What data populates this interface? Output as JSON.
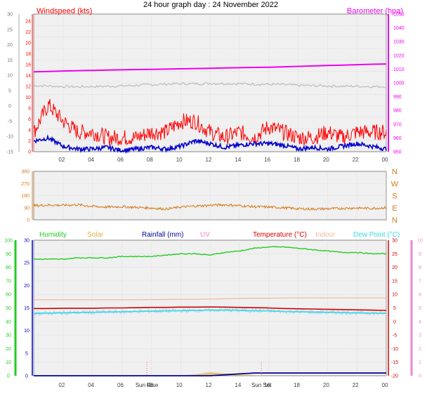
{
  "title": "24 hour graph day : 24 November 2022",
  "colors": {
    "wind": "#ff0000",
    "gust_bg": "#ff0000",
    "avg": "#0000cc",
    "baro": "#ee00ee",
    "temp_line": "#d40000",
    "humidity": "#22cc22",
    "solar": "#e0b040",
    "rain": "#000099",
    "uv": "#ee88cc",
    "indoor": "#f0b8a0",
    "dew": "#33dddd",
    "direction": "#d67a1a",
    "grey_trace": "#bbbbbb",
    "grid": "#c8c8c8",
    "panel_bg": "#f0f0f0"
  },
  "x_ticks": [
    "02",
    "04",
    "06",
    "08",
    "10",
    "12",
    "14",
    "16",
    "18",
    "20",
    "22",
    "00"
  ],
  "sun_labels": {
    "sunrise": "Sun Rise",
    "sunset": "Sun Set"
  },
  "chart_data": [
    {
      "type": "line",
      "title": "",
      "left_axis_label": "Windspeed (kts)",
      "right_axis_label": "Barometer (hpa)",
      "left_ticks": [
        24,
        22,
        20,
        18,
        16,
        14,
        12,
        10,
        8,
        6,
        4,
        2,
        0
      ],
      "outer_left_ticks": [
        30,
        25,
        20,
        15,
        10,
        5,
        0,
        -5,
        -10,
        -15
      ],
      "right_ticks": [
        1050,
        1040,
        1030,
        1020,
        1010,
        1000,
        990,
        980,
        970,
        960,
        950
      ],
      "ylim_left": [
        0,
        24
      ],
      "ylim_right": [
        950,
        1050
      ],
      "x_hours": [
        0,
        1,
        2,
        3,
        4,
        5,
        6,
        7,
        8,
        9,
        10,
        11,
        12,
        13,
        14,
        15,
        16,
        17,
        18,
        19,
        20,
        21,
        22,
        23,
        24
      ],
      "series": [
        {
          "name": "Barometer (hpa)",
          "axis": "right",
          "values": [
            1008,
            1008.3,
            1008.6,
            1008.9,
            1009.1,
            1009.3,
            1009.5,
            1009.7,
            1009.8,
            1010,
            1010.2,
            1010.4,
            1010.6,
            1010.8,
            1011,
            1011.2,
            1011.4,
            1011.7,
            1012,
            1012.3,
            1012.6,
            1012.9,
            1013.2,
            1013.5,
            1013.7
          ]
        },
        {
          "name": "",
          "axis": "outer",
          "values": [
            6.6,
            6.5,
            6.3,
            6.2,
            6.3,
            6.4,
            6.5,
            6.7,
            6.9,
            7.1,
            7.2,
            7.2,
            7.3,
            7.3,
            7.2,
            7.1,
            7.0,
            6.9,
            6.7,
            6.6,
            6.5,
            6.4,
            6.4,
            6.3,
            6.3
          ]
        },
        {
          "name": "",
          "axis": "left",
          "values": [
            3,
            8,
            5,
            3,
            3,
            2,
            2,
            2,
            3,
            3,
            5,
            5,
            3,
            2,
            3,
            2,
            4,
            3,
            2,
            2,
            3,
            2,
            3,
            3,
            3
          ]
        },
        {
          "name": "",
          "axis": "left",
          "values": [
            2,
            2.5,
            1,
            0.5,
            0.5,
            0.8,
            0.2,
            0.5,
            0.8,
            0.5,
            1,
            2,
            1.5,
            0.8,
            1.2,
            1.5,
            1.5,
            1.2,
            0.5,
            0.8,
            0.5,
            1,
            1.5,
            1,
            0.5
          ]
        }
      ]
    },
    {
      "type": "line",
      "title": "",
      "left_ticks": [
        360,
        270,
        180,
        90,
        0
      ],
      "right_labels": [
        "N",
        "W",
        "S",
        "E",
        "N"
      ],
      "ylim": [
        0,
        360
      ],
      "x_hours": [
        0,
        1,
        2,
        3,
        4,
        5,
        6,
        7,
        8,
        9,
        10,
        11,
        12,
        13,
        14,
        15,
        16,
        17,
        18,
        19,
        20,
        21,
        22,
        23,
        24
      ],
      "series": [
        {
          "name": "",
          "values": [
            105,
            110,
            108,
            112,
            100,
            95,
            98,
            92,
            88,
            80,
            95,
            102,
            108,
            112,
            105,
            98,
            95,
            90,
            82,
            80,
            82,
            85,
            88,
            85,
            90
          ]
        }
      ]
    },
    {
      "type": "line",
      "title": "",
      "legend": [
        "Humidity",
        "Solar",
        "Rainfall (mm)",
        "UV",
        "Temperature (°C)",
        "Indoor",
        "Dew Point (°C)"
      ],
      "left_ticks_humidity": [
        100,
        90,
        80,
        70,
        60,
        50,
        40,
        30,
        20,
        10,
        0
      ],
      "left_ticks_main": [
        30,
        25,
        20,
        15,
        10,
        5,
        0
      ],
      "right_ticks_temp": [
        30,
        25,
        20,
        15,
        10,
        5,
        0,
        -5,
        -10,
        -15,
        -20
      ],
      "right_ticks_uv": [
        10,
        9,
        8,
        7,
        6,
        5,
        4,
        3,
        2,
        1,
        0
      ],
      "ylim_humidity": [
        0,
        100
      ],
      "ylim_temp": [
        -20,
        30
      ],
      "x_hours": [
        0,
        1,
        2,
        3,
        4,
        5,
        6,
        7,
        8,
        9,
        10,
        11,
        12,
        13,
        14,
        15,
        16,
        17,
        18,
        19,
        20,
        21,
        22,
        23,
        24
      ],
      "series": [
        {
          "name": "Humidity",
          "axis": "humidity",
          "values": [
            86,
            86,
            86,
            87,
            87,
            87,
            88,
            88,
            88,
            89,
            90,
            90,
            89,
            91,
            92,
            94,
            95,
            95,
            94,
            93,
            92,
            91,
            91,
            90,
            90
          ]
        },
        {
          "name": "Temperature (°C)",
          "axis": "temp",
          "values": [
            4.8,
            4.8,
            4.9,
            4.9,
            4.9,
            5.0,
            5.0,
            5.1,
            5.2,
            5.2,
            5.3,
            5.3,
            5.4,
            5.3,
            5.2,
            5.1,
            5.0,
            4.8,
            4.7,
            4.6,
            4.5,
            4.4,
            4.3,
            4.2,
            4.1
          ]
        },
        {
          "name": "Dew Point (°C)",
          "axis": "temp",
          "values": [
            3.0,
            3.1,
            3.2,
            3.3,
            3.4,
            3.5,
            3.6,
            3.7,
            3.8,
            3.9,
            4.0,
            4.1,
            4.2,
            4.2,
            4.1,
            4.0,
            3.9,
            3.7,
            3.6,
            3.5,
            3.4,
            3.3,
            3.2,
            3.1,
            3.0
          ]
        },
        {
          "name": "Indoor",
          "axis": "temp",
          "values": [
            8.0,
            8.0,
            8.0,
            8.0,
            8.0,
            8.0,
            8.0,
            8.0,
            8.1,
            8.1,
            8.2,
            8.2,
            8.3,
            8.4,
            8.5,
            8.6,
            8.6,
            8.7,
            8.7,
            8.7,
            8.7,
            8.7,
            8.7,
            8.7,
            8.7
          ]
        },
        {
          "name": "Rainfall (mm)",
          "axis": "main",
          "values": [
            0,
            0,
            0,
            0,
            0,
            0,
            0,
            0,
            0,
            0,
            0,
            0,
            0,
            0.2,
            0.4,
            0.6,
            0.6,
            0.6,
            0.6,
            0.6,
            0.6,
            0.6,
            0.6,
            0.6,
            0.6
          ]
        },
        {
          "name": "Solar",
          "axis": "main",
          "values": [
            0,
            0,
            0,
            0,
            0,
            0,
            0,
            0,
            0,
            0.05,
            0.1,
            0.3,
            0.8,
            0.5,
            0.3,
            0.1,
            0,
            0,
            0,
            0,
            0,
            0,
            0,
            0,
            0
          ]
        }
      ]
    }
  ]
}
